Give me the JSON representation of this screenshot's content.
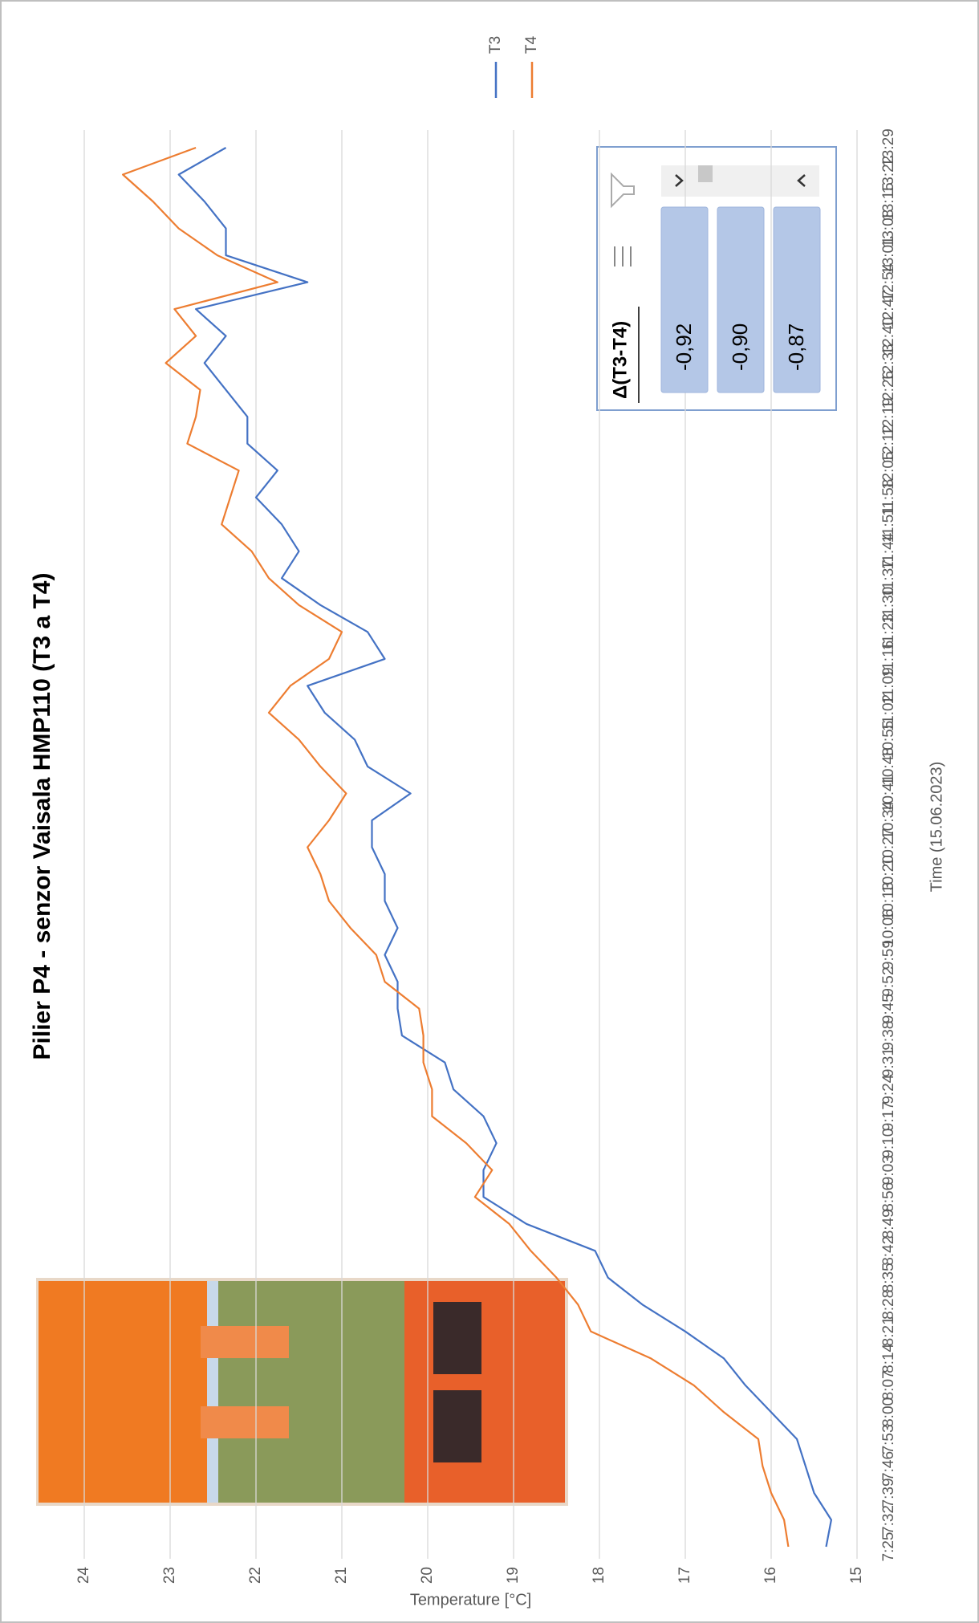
{
  "chart_data": {
    "type": "line",
    "title": "Pilier P4 - senzor Vaisala HMP110 (T3 a T4)",
    "x_label": "Time (15.06.2023)",
    "y_label": "Temperature [°C]",
    "categories": [
      "7:25",
      "7:32",
      "7:39",
      "7:46",
      "7:53",
      "8:00",
      "8:07",
      "8:14",
      "8:21",
      "8:28",
      "8:35",
      "8:42",
      "8:49",
      "8:56",
      "9:03",
      "9:10",
      "9:17",
      "9:24",
      "9:31",
      "9:38",
      "9:45",
      "9:52",
      "9:59",
      "10:06",
      "10:13",
      "10:20",
      "10:27",
      "10:34",
      "10:41",
      "10:48",
      "10:55",
      "11:02",
      "11:09",
      "11:16",
      "11:23",
      "11:30",
      "11:37",
      "11:44",
      "11:51",
      "11:58",
      "12:05",
      "12:12",
      "12:19",
      "12:26",
      "12:33",
      "12:40",
      "12:47",
      "12:54",
      "13:01",
      "13:08",
      "13:15",
      "13:22",
      "13:29"
    ],
    "series": [
      {
        "name": "T3",
        "color": "#4472c4",
        "values": [
          15.36,
          15.3,
          15.5,
          15.6,
          15.7,
          16.0,
          16.3,
          16.55,
          17.0,
          17.5,
          17.9,
          18.05,
          18.85,
          19.35,
          19.35,
          19.2,
          19.35,
          19.7,
          19.8,
          20.3,
          20.35,
          20.35,
          20.5,
          20.35,
          20.5,
          20.5,
          20.65,
          20.65,
          20.2,
          20.7,
          20.85,
          21.2,
          21.4,
          20.5,
          20.7,
          21.25,
          21.7,
          21.5,
          21.7,
          22.0,
          21.75,
          22.1,
          22.1,
          22.35,
          22.6,
          22.35,
          22.7,
          21.4,
          22.35,
          22.35,
          22.6,
          22.9,
          22.35
        ]
      },
      {
        "name": "T4",
        "color": "#ed7d31",
        "values": [
          15.8,
          15.85,
          16.0,
          16.1,
          16.15,
          16.55,
          16.9,
          17.4,
          18.1,
          18.25,
          18.5,
          18.8,
          19.05,
          19.45,
          19.25,
          19.55,
          19.95,
          19.95,
          20.05,
          20.05,
          20.1,
          20.5,
          20.6,
          20.9,
          21.15,
          21.25,
          21.4,
          21.15,
          20.95,
          21.25,
          21.5,
          21.85,
          21.6,
          21.15,
          21.0,
          21.5,
          21.85,
          22.05,
          22.4,
          22.3,
          22.2,
          22.8,
          22.7,
          22.65,
          23.05,
          22.7,
          22.95,
          21.75,
          22.45,
          22.9,
          23.2,
          23.55,
          22.7
        ]
      }
    ],
    "ylim": [
      15,
      24
    ],
    "yticks": [
      15,
      16,
      17,
      18,
      19,
      20,
      21,
      22,
      23,
      24
    ],
    "grid": true,
    "legend": "right"
  },
  "slicer": {
    "title": "Δ(T3-T4)",
    "items": [
      "-0,92",
      "-0,90",
      "-0,87"
    ]
  }
}
